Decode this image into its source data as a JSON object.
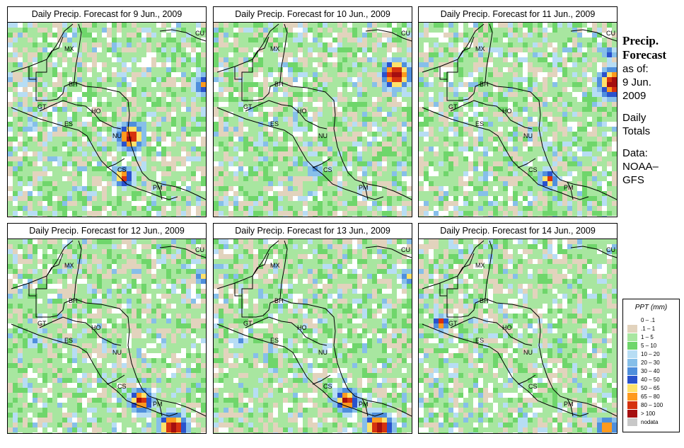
{
  "panels": [
    {
      "title": "Daily Precip. Forecast for  9 Jun., 2009",
      "heavy": "storm-near-nicaragua"
    },
    {
      "title": "Daily Precip. Forecast for  10 Jun., 2009",
      "heavy": "storm-near-cuba"
    },
    {
      "title": "Daily Precip. Forecast for  11 Jun., 2009",
      "heavy": "storm-east-edge"
    },
    {
      "title": "Daily Precip. Forecast for  12 Jun., 2009",
      "heavy": "storm-costa-rica-south"
    },
    {
      "title": "Daily Precip. Forecast for  13 Jun., 2009",
      "heavy": "storm-costa-rica-south"
    },
    {
      "title": "Daily Precip. Forecast for  14 Jun., 2009",
      "heavy": "storm-guatemala"
    }
  ],
  "countries": {
    "mx": "MX",
    "cu": "CU",
    "bh": "BH",
    "gt": "GT",
    "ho": "HO",
    "es": "ES",
    "nu": "NU",
    "cs": "CS",
    "pm": "PM"
  },
  "side": {
    "heading_line1": "Precip.",
    "heading_line2": "Forecast",
    "asof_line1": "as of:",
    "asof_line2": "9 Jun.",
    "asof_line3": "2009",
    "daily_line1": "Daily",
    "daily_line2": "Totals",
    "data_line1": "Data:",
    "data_line2": "NOAA–",
    "data_line3": "GFS"
  },
  "legend": {
    "title": "PPT (mm)",
    "classes": [
      {
        "label": "0 – .1",
        "color": "#ffffff"
      },
      {
        "label": ".1 – 1",
        "color": "#e2d3bd"
      },
      {
        "label": "1 – 5",
        "color": "#a8e6a0"
      },
      {
        "label": "5 – 10",
        "color": "#6fd66b"
      },
      {
        "label": "10 – 20",
        "color": "#b7ddf4"
      },
      {
        "label": "20 – 30",
        "color": "#86bfe9"
      },
      {
        "label": "30 – 40",
        "color": "#4f8fdc"
      },
      {
        "label": "40 – 50",
        "color": "#2a52cc"
      },
      {
        "label": "50 – 65",
        "color": "#ffe26a"
      },
      {
        "label": "65 – 80",
        "color": "#ff9a1e"
      },
      {
        "label": "80 – 100",
        "color": "#d6320f"
      },
      {
        "label": "> 100",
        "color": "#a50f10"
      },
      {
        "label": "nodata",
        "color": "#c8c8c8"
      }
    ]
  }
}
